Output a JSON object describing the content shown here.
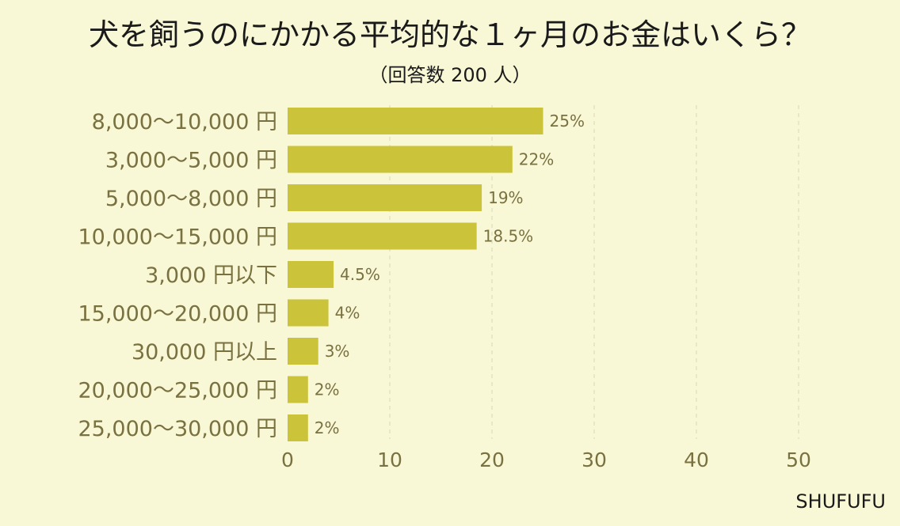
{
  "colors": {
    "background": "#f8f7d6",
    "bar": "#cbc43a",
    "label": "#7a7140",
    "title": "#1a1a1a"
  },
  "brand": "SHUFUFU",
  "chart_data": {
    "type": "bar",
    "orientation": "horizontal",
    "title": "犬を飼うのにかかる平均的な１ヶ月のお金はいくら？",
    "subtitle": "（回答数 200 人）",
    "categories": [
      "8,000〜10,000 円",
      "3,000〜5,000 円",
      "5,000〜8,000 円",
      "10,000〜15,000 円",
      "3,000 円以下",
      "15,000〜20,000 円",
      "30,000 円以上",
      "20,000〜25,000 円",
      "25,000〜30,000 円"
    ],
    "values": [
      25,
      22,
      19,
      18.5,
      4.5,
      4,
      3,
      2,
      2
    ],
    "data_labels": [
      "25%",
      "22%",
      "19%",
      "18.5%",
      "4.5%",
      "4%",
      "3%",
      "2%",
      "2%"
    ],
    "x_ticks": [
      0,
      10,
      20,
      30,
      40,
      50
    ],
    "xlim": [
      0,
      50
    ],
    "grid": "vertical-dashed"
  }
}
